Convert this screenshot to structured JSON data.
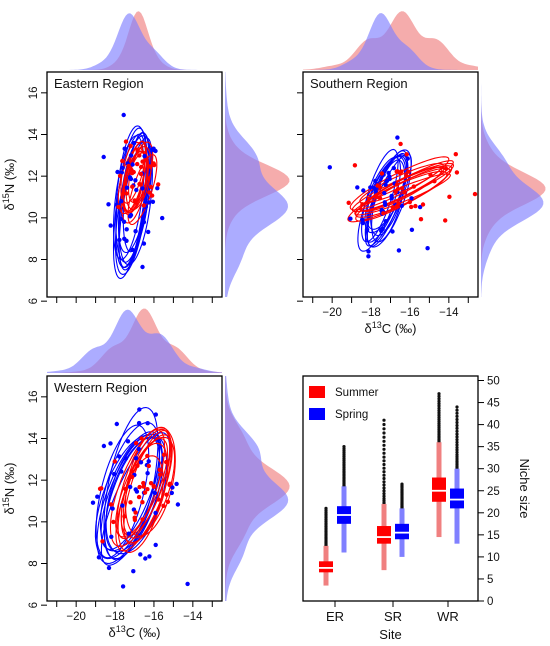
{
  "colors": {
    "summer": "#ff0000",
    "spring": "#0000ff",
    "summer_fill": "#f08080",
    "spring_fill": "#8080ff"
  },
  "labels": {
    "yaxis": "δ15N (‰)",
    "xaxis": "δ13C (‰)",
    "niche_axis": "Niche size",
    "site_axis": "Site"
  },
  "chart_data": [
    {
      "type": "scatter",
      "title": "Eastern Region",
      "xlabel": "",
      "ylabel": "δ15N (‰)",
      "xlim": [
        -21.5,
        -12.5
      ],
      "ylim": [
        6.2,
        17.0
      ],
      "yticks": [
        6,
        8,
        10,
        12,
        14,
        16
      ],
      "series": [
        {
          "name": "Summer",
          "centroid": [
            -16.8,
            11.8
          ],
          "sd": [
            0.6,
            0.9
          ],
          "ellipse_angle_deg": 70,
          "n_points": 30,
          "n_ellipses": 10
        },
        {
          "name": "Spring",
          "centroid": [
            -17.1,
            10.9
          ],
          "sd": [
            0.8,
            1.7
          ],
          "ellipse_angle_deg": 72,
          "n_points": 45,
          "n_ellipses": 10
        }
      ],
      "marginals": {
        "top": true,
        "right": true
      }
    },
    {
      "type": "scatter",
      "title": "Southern Region",
      "xlabel": "δ13C (‰)",
      "ylabel": "",
      "xlim": [
        -21.5,
        -12.5
      ],
      "ylim": [
        6.2,
        17.0
      ],
      "xticks": [
        -20,
        -18,
        -16,
        -14
      ],
      "series": [
        {
          "name": "Summer",
          "centroid": [
            -16.4,
            11.4
          ],
          "sd": [
            1.5,
            1.0
          ],
          "ellipse_angle_deg": 35,
          "n_points": 40,
          "n_ellipses": 10
        },
        {
          "name": "Spring",
          "centroid": [
            -17.3,
            11.0
          ],
          "sd": [
            0.9,
            1.3
          ],
          "ellipse_angle_deg": 62,
          "n_points": 45,
          "n_ellipses": 10
        }
      ],
      "marginals": {
        "top": true,
        "right": true
      }
    },
    {
      "type": "scatter",
      "title": "Western Region",
      "xlabel": "δ13C (‰)",
      "ylabel": "δ15N (‰)",
      "xlim": [
        -21.5,
        -12.5
      ],
      "ylim": [
        6.2,
        17.0
      ],
      "xticks": [
        -20,
        -18,
        -16,
        -14
      ],
      "yticks": [
        6,
        8,
        10,
        12,
        14,
        16
      ],
      "series": [
        {
          "name": "Summer",
          "centroid": [
            -16.5,
            11.7
          ],
          "sd": [
            1.2,
            1.5
          ],
          "ellipse_angle_deg": 65,
          "n_points": 40,
          "n_ellipses": 10
        },
        {
          "name": "Spring",
          "centroid": [
            -17.1,
            11.4
          ],
          "sd": [
            1.4,
            1.8
          ],
          "ellipse_angle_deg": 68,
          "n_points": 45,
          "n_ellipses": 10
        }
      ],
      "marginals": {
        "top": true,
        "right": true
      }
    },
    {
      "type": "box",
      "title": "",
      "xlabel": "Site",
      "ylabel": "Niche size",
      "categories": [
        "ER",
        "SR",
        "WR"
      ],
      "ylim": [
        0,
        50
      ],
      "yticks": [
        0,
        5,
        10,
        15,
        20,
        25,
        30,
        35,
        40,
        45,
        50
      ],
      "legend": {
        "position": "top-left",
        "entries": [
          "Summer",
          "Spring"
        ]
      },
      "series": [
        {
          "name": "Summer",
          "boxes": [
            {
              "min": 3.5,
              "q1": 6.5,
              "median": 7.5,
              "q3": 9,
              "max": 12.5,
              "outlier_max": 21
            },
            {
              "min": 7,
              "q1": 13,
              "median": 14.5,
              "q3": 17,
              "max": 22,
              "outlier_max": 41
            },
            {
              "min": 14.5,
              "q1": 22.5,
              "median": 25,
              "q3": 28,
              "max": 36,
              "outlier_max": 47
            }
          ]
        },
        {
          "name": "Spring",
          "boxes": [
            {
              "min": 11,
              "q1": 17.5,
              "median": 19.5,
              "q3": 21.5,
              "max": 26,
              "outlier_max": 35
            },
            {
              "min": 10,
              "q1": 14,
              "median": 15.5,
              "q3": 17.5,
              "max": 21,
              "outlier_max": 26.5
            },
            {
              "min": 13,
              "q1": 21,
              "median": 23,
              "q3": 25.5,
              "max": 30,
              "outlier_max": 44
            }
          ]
        }
      ]
    }
  ]
}
